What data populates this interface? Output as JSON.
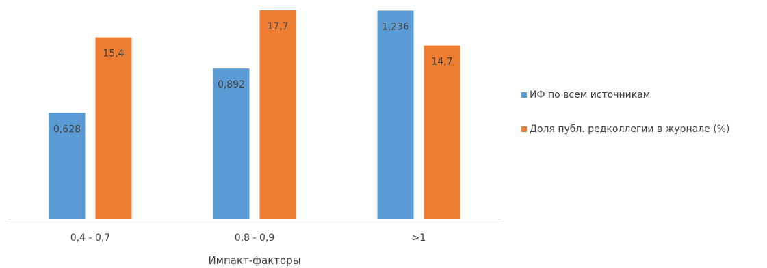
{
  "chart_data": {
    "type": "bar",
    "title": "",
    "xlabel": "Импакт-факторы",
    "ylabel": "",
    "categories": [
      "0,4 - 0,7",
      "0,8 - 0,9",
      ">1"
    ],
    "series": [
      {
        "name": "ИФ по всем источникам",
        "color": "#5B9BD5",
        "values": [
          0.628,
          0.892,
          1.236
        ],
        "labels": [
          "0,628",
          "0,892",
          "1,236"
        ],
        "display_scale": 14.3
      },
      {
        "name": "Доля публ.  редколлегии в журнале (%)",
        "color": "#ED7D31",
        "values": [
          15.4,
          17.7,
          14.7
        ],
        "labels": [
          "15,4",
          "17,7",
          "14,7"
        ],
        "display_scale": 1
      }
    ],
    "ylim": [
      0,
      17.7
    ],
    "grid": false,
    "legend_position": "right"
  }
}
